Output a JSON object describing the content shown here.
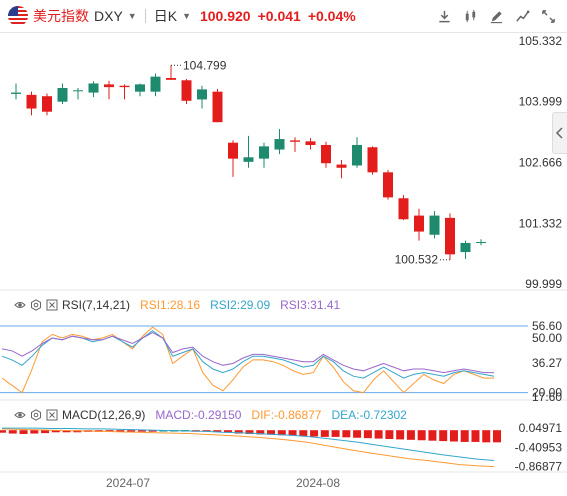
{
  "header": {
    "symbol_cn": "美元指数",
    "symbol_en": "DXY",
    "period": "日K",
    "price": "100.920",
    "change": "+0.041",
    "change_pct": "+0.04%",
    "accent_color": "#e21e1e"
  },
  "toolbar_icons": [
    "download-icon",
    "chart-type-icon",
    "draw-icon",
    "indicator-icon",
    "fullscreen-icon"
  ],
  "chart_data": [
    {
      "type": "candlestick",
      "title": "DXY",
      "y_axis_labels": [
        "105.332",
        "103.999",
        "102.666",
        "101.332",
        "99.999"
      ],
      "ylim": [
        99.999,
        105.332
      ],
      "x_axis_labels": [
        "2024-07",
        "2024-08"
      ],
      "annotations": {
        "high": "104.799",
        "low": "100.532"
      },
      "colors": {
        "up": "#1e8a6e",
        "down": "#e31c1c"
      },
      "candles": [
        {
          "o": 104.17,
          "h": 104.4,
          "l": 104.05,
          "c": 104.2
        },
        {
          "o": 104.15,
          "h": 104.22,
          "l": 103.7,
          "c": 103.85
        },
        {
          "o": 104.12,
          "h": 104.18,
          "l": 103.7,
          "c": 103.78
        },
        {
          "o": 104.0,
          "h": 104.4,
          "l": 103.95,
          "c": 104.3
        },
        {
          "o": 104.25,
          "h": 104.3,
          "l": 104.05,
          "c": 104.25
        },
        {
          "o": 104.2,
          "h": 104.45,
          "l": 104.1,
          "c": 104.4
        },
        {
          "o": 104.38,
          "h": 104.46,
          "l": 104.05,
          "c": 104.32
        },
        {
          "o": 104.35,
          "h": 104.38,
          "l": 104.05,
          "c": 104.32
        },
        {
          "o": 104.22,
          "h": 104.4,
          "l": 104.12,
          "c": 104.38
        },
        {
          "o": 104.22,
          "h": 104.62,
          "l": 104.12,
          "c": 104.55
        },
        {
          "o": 104.52,
          "h": 104.799,
          "l": 104.48,
          "c": 104.48
        },
        {
          "o": 104.47,
          "h": 104.5,
          "l": 103.95,
          "c": 104.02
        },
        {
          "o": 104.05,
          "h": 104.35,
          "l": 103.85,
          "c": 104.27
        },
        {
          "o": 104.22,
          "h": 104.28,
          "l": 103.55,
          "c": 103.55
        },
        {
          "o": 103.1,
          "h": 103.15,
          "l": 102.35,
          "c": 102.75
        },
        {
          "o": 102.68,
          "h": 103.25,
          "l": 102.55,
          "c": 102.78
        },
        {
          "o": 102.75,
          "h": 103.1,
          "l": 102.55,
          "c": 103.02
        },
        {
          "o": 102.95,
          "h": 103.4,
          "l": 102.85,
          "c": 103.18
        },
        {
          "o": 103.15,
          "h": 103.22,
          "l": 102.9,
          "c": 103.12
        },
        {
          "o": 103.13,
          "h": 103.2,
          "l": 102.95,
          "c": 103.05
        },
        {
          "o": 103.05,
          "h": 103.12,
          "l": 102.55,
          "c": 102.65
        },
        {
          "o": 102.62,
          "h": 102.72,
          "l": 102.32,
          "c": 102.55
        },
        {
          "o": 102.6,
          "h": 103.22,
          "l": 102.55,
          "c": 103.05
        },
        {
          "o": 103.0,
          "h": 103.02,
          "l": 102.4,
          "c": 102.45
        },
        {
          "o": 102.45,
          "h": 102.5,
          "l": 101.85,
          "c": 101.9
        },
        {
          "o": 101.88,
          "h": 101.95,
          "l": 101.4,
          "c": 101.42
        },
        {
          "o": 101.5,
          "h": 101.65,
          "l": 100.95,
          "c": 101.15
        },
        {
          "o": 101.08,
          "h": 101.6,
          "l": 101.0,
          "c": 101.5
        },
        {
          "o": 101.45,
          "h": 101.55,
          "l": 100.532,
          "c": 100.65
        },
        {
          "o": 100.7,
          "h": 100.95,
          "l": 100.55,
          "c": 100.9
        },
        {
          "o": 100.9,
          "h": 100.98,
          "l": 100.85,
          "c": 100.92
        }
      ]
    },
    {
      "type": "line",
      "title": "RSI(7,14,21)",
      "legend": [
        "RSI1:28.16",
        "RSI2:29.09",
        "RSI3:31.41"
      ],
      "y_axis_labels": [
        "56.60",
        "50.00",
        "36.27",
        "17.60",
        "20.00"
      ],
      "ylim": [
        17.6,
        56.6
      ],
      "ref_lines": [
        56.6,
        20.0
      ],
      "series": [
        {
          "name": "RSI1",
          "color": "#ff9933",
          "values": [
            28,
            24,
            20,
            33,
            48,
            52,
            50,
            52,
            51,
            49,
            50,
            52,
            48,
            44,
            51,
            56,
            52,
            36,
            40,
            44,
            31,
            24,
            21,
            27,
            34,
            38,
            38,
            37,
            35,
            32,
            30,
            31,
            40,
            34,
            26,
            21,
            20,
            27,
            32,
            26,
            20,
            25,
            30,
            27,
            25,
            30,
            32,
            30,
            28,
            28
          ]
        },
        {
          "name": "RSI2",
          "color": "#33a6cc",
          "values": [
            40,
            38,
            35,
            40,
            46,
            50,
            49,
            51,
            50,
            48,
            49,
            51,
            48,
            45,
            50,
            54,
            50,
            40,
            42,
            44,
            37,
            33,
            31,
            33,
            37,
            40,
            40,
            39,
            38,
            36,
            34,
            35,
            40,
            37,
            32,
            29,
            28,
            31,
            34,
            31,
            28,
            30,
            31,
            30,
            29,
            31,
            32,
            31,
            30,
            29
          ]
        },
        {
          "name": "RSI3",
          "color": "#9966cc",
          "values": [
            44,
            43,
            40,
            43,
            47,
            50,
            49,
            51,
            50,
            49,
            49,
            51,
            49,
            47,
            50,
            53,
            50,
            42,
            44,
            45,
            40,
            37,
            35,
            36,
            39,
            41,
            41,
            40,
            39,
            38,
            37,
            37,
            41,
            38,
            35,
            33,
            32,
            34,
            36,
            34,
            32,
            33,
            33,
            32,
            31,
            32,
            33,
            32,
            31,
            31
          ]
        }
      ]
    },
    {
      "type": "bar",
      "title": "MACD(12,26,9)",
      "legend": [
        "MACD:-0.29150",
        "DIF:-0.86877",
        "DEA:-0.72302"
      ],
      "y_axis_labels": [
        "0.04971",
        "-0.40953",
        "-0.86877"
      ],
      "ylim": [
        -0.95,
        0.1
      ],
      "hist_values": [
        -0.06,
        -0.08,
        -0.09,
        -0.08,
        -0.07,
        -0.05,
        -0.05,
        -0.05,
        -0.04,
        -0.04,
        -0.03,
        -0.02,
        -0.02,
        -0.01,
        -0.01,
        0.004,
        0.004,
        0.004,
        -0.004,
        -0.02,
        -0.04,
        -0.06,
        -0.08,
        -0.09,
        -0.1,
        -0.11,
        -0.12,
        -0.13,
        -0.14,
        -0.15,
        -0.16,
        -0.16,
        -0.17,
        -0.18,
        -0.19,
        -0.2,
        -0.21,
        -0.22,
        -0.23,
        -0.24,
        -0.25,
        -0.26,
        -0.27,
        -0.28,
        -0.28,
        -0.29,
        -0.29
      ],
      "series": [
        {
          "name": "DIF",
          "color": "#ff9933",
          "values": [
            0.03,
            0.02,
            0.01,
            0.0,
            -0.01,
            -0.02,
            -0.03,
            -0.04,
            -0.05,
            -0.06,
            -0.07,
            -0.08,
            -0.1,
            -0.12,
            -0.14,
            -0.17,
            -0.2,
            -0.24,
            -0.29,
            -0.36,
            -0.43,
            -0.5,
            -0.56,
            -0.62,
            -0.68,
            -0.72,
            -0.77,
            -0.82,
            -0.85,
            -0.868
          ]
        },
        {
          "name": "DEA",
          "color": "#33a6cc",
          "values": [
            0.05,
            0.05,
            0.05,
            0.04,
            0.04,
            0.03,
            0.03,
            0.02,
            0.01,
            0.0,
            -0.01,
            -0.02,
            -0.03,
            -0.05,
            -0.06,
            -0.08,
            -0.1,
            -0.12,
            -0.15,
            -0.19,
            -0.24,
            -0.29,
            -0.35,
            -0.41,
            -0.47,
            -0.53,
            -0.59,
            -0.64,
            -0.69,
            -0.723
          ]
        }
      ]
    }
  ]
}
